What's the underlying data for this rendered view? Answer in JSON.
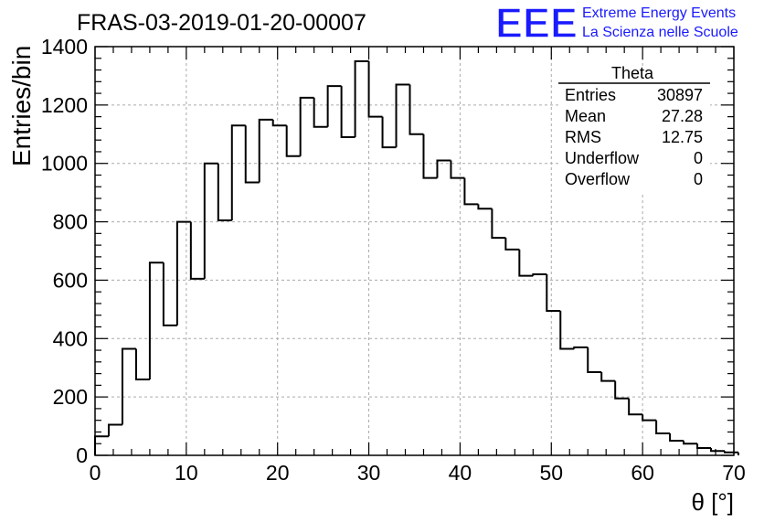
{
  "header": {
    "run_title": "FRAS-03-2019-01-20-00007",
    "logo_text": "EEE",
    "logo_line1": "Extreme Energy Events",
    "logo_line2": "La Scienza nelle Scuole",
    "logo_color": "#1a1aff"
  },
  "stats_box": {
    "title": "Theta",
    "rows": [
      {
        "label": "Entries",
        "value": "30897"
      },
      {
        "label": "Mean",
        "value": "27.28"
      },
      {
        "label": "RMS",
        "value": "12.75"
      },
      {
        "label": "Underflow",
        "value": "0"
      },
      {
        "label": "Overflow",
        "value": "0"
      }
    ]
  },
  "chart_data": {
    "type": "bar",
    "style": "step-histogram",
    "title": "FRAS-03-2019-01-20-00007",
    "xlabel": "θ [°]",
    "ylabel": "Entries/bin",
    "xlim": [
      0,
      70
    ],
    "ylim": [
      0,
      1400
    ],
    "grid": true,
    "bin_width": 1.5,
    "bin_start": 0,
    "x_ticks": [
      "0",
      "10",
      "20",
      "30",
      "40",
      "50",
      "60",
      "70"
    ],
    "y_ticks": [
      "0",
      "200",
      "400",
      "600",
      "800",
      "1000",
      "1200",
      "1400"
    ],
    "values": [
      65,
      105,
      365,
      260,
      660,
      445,
      800,
      605,
      1000,
      805,
      1130,
      935,
      1150,
      1130,
      1025,
      1225,
      1125,
      1265,
      1090,
      1350,
      1160,
      1055,
      1270,
      1100,
      950,
      1010,
      950,
      860,
      845,
      745,
      705,
      615,
      620,
      495,
      365,
      370,
      285,
      255,
      195,
      140,
      120,
      75,
      50,
      40,
      25,
      15,
      10
    ],
    "line_color": "#000000",
    "grid_color": "#aaaaaa"
  }
}
